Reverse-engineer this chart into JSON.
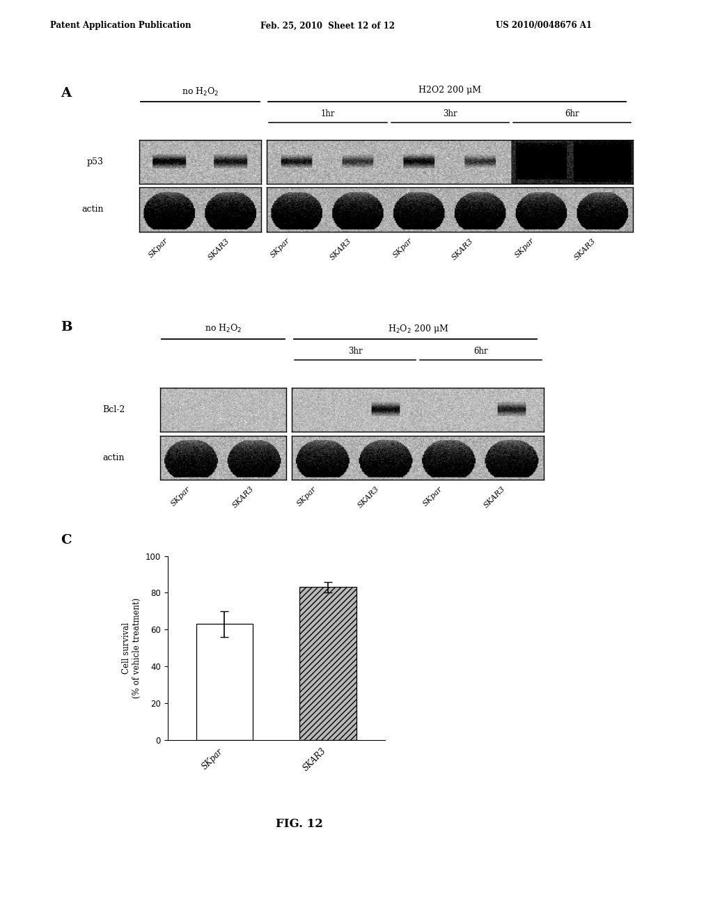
{
  "header_left": "Patent Application Publication",
  "header_mid": "Feb. 25, 2010  Sheet 12 of 12",
  "header_right": "US 2010/0048676 A1",
  "panel_A_label": "A",
  "panel_B_label": "B",
  "panel_C_label": "C",
  "fig_caption": "FIG. 12",
  "panel_A": {
    "group1_label": "no H₂O₂",
    "group2_label": "H2O2 200 μM",
    "subgroup_labels": [
      "1hr",
      "3hr",
      "6hr"
    ],
    "row_labels": [
      "p53",
      "actin"
    ],
    "col_labels": [
      "SKpar",
      "SKAR3",
      "SKpar",
      "SKAR3",
      "SKpar",
      "SKAR3",
      "SKpar",
      "SKAR3"
    ]
  },
  "panel_B": {
    "group1_label": "no H₂O₂",
    "group2_label": "H₂O₂ 200 μM",
    "subgroup_labels": [
      "3hr",
      "6hr"
    ],
    "row_labels": [
      "Bcl-2",
      "actin"
    ],
    "col_labels": [
      "SKpar",
      "SKAR3",
      "SKpar",
      "SKAR3",
      "SKpar",
      "SKAR3"
    ]
  },
  "panel_C": {
    "bar_labels": [
      "SKpar",
      "SKAR3"
    ],
    "bar_values": [
      63,
      83
    ],
    "bar_errors": [
      7,
      3
    ],
    "bar_colors": [
      "white",
      "#b8b8b8"
    ],
    "bar_hatch": [
      "",
      "////"
    ],
    "ylabel": "Cell survival\n(% of vehicle treatment)",
    "ylim": [
      0,
      100
    ],
    "yticks": [
      0,
      20,
      40,
      60,
      80,
      100
    ]
  }
}
